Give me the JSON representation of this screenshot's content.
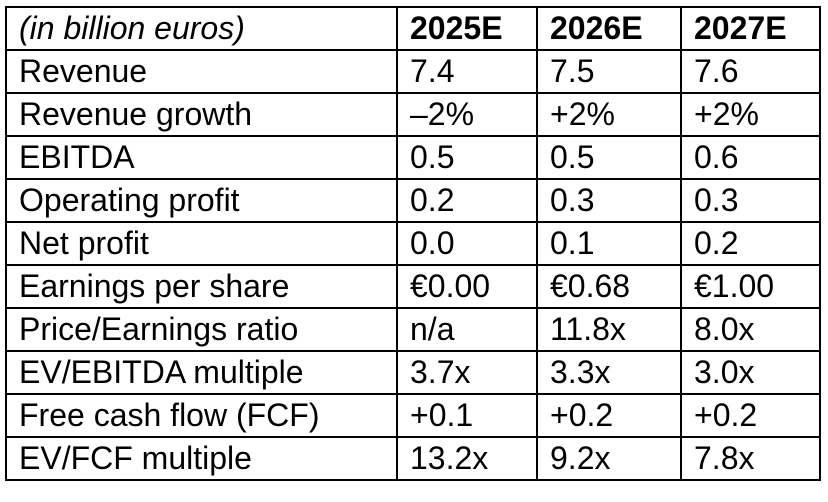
{
  "table": {
    "unit_label": "(in billion euros)",
    "columns": [
      "2025E",
      "2026E",
      "2027E"
    ],
    "rows": [
      {
        "label": "Revenue",
        "values": [
          "7.4",
          "7.5",
          "7.6"
        ]
      },
      {
        "label": "Revenue growth",
        "values": [
          "–2%",
          "+2%",
          "+2%"
        ]
      },
      {
        "label": "EBITDA",
        "values": [
          "0.5",
          "0.5",
          "0.6"
        ]
      },
      {
        "label": "Operating profit",
        "values": [
          "0.2",
          "0.3",
          "0.3"
        ]
      },
      {
        "label": "Net profit",
        "values": [
          "0.0",
          "0.1",
          "0.2"
        ]
      },
      {
        "label": "Earnings per share",
        "values": [
          "€0.00",
          "€0.68",
          "€1.00"
        ]
      },
      {
        "label": "Price/Earnings ratio",
        "values": [
          "n/a",
          "11.8x",
          "8.0x"
        ]
      },
      {
        "label": "EV/EBITDA multiple",
        "values": [
          "3.7x",
          "3.3x",
          "3.0x"
        ]
      },
      {
        "label": "Free cash flow (FCF)",
        "values": [
          "+0.1",
          "+0.2",
          "+0.2"
        ]
      },
      {
        "label": "EV/FCF multiple",
        "values": [
          "13.2x",
          "9.2x",
          "7.8x"
        ]
      }
    ]
  }
}
